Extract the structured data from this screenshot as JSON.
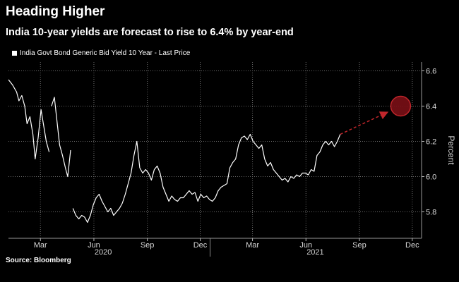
{
  "header": {
    "title": "Heading Higher",
    "subtitle": "India 10-year yields are forecast to rise to 6.4% by year-end"
  },
  "legend": {
    "label": "India Govt Bond Generic Bid Yield 10 Year - Last Price"
  },
  "footer": {
    "source": "Source: Bloomberg"
  },
  "colors": {
    "background": "#000000",
    "series": "#ffffff",
    "forecast": "#c0262b",
    "grid": "#6a6a6a"
  },
  "chart_data": {
    "type": "line",
    "title": "Heading Higher",
    "subtitle": "India 10-year yields are forecast to rise to 6.4% by year-end",
    "ylabel": "Percent",
    "y_axis_side": "right",
    "ylim": [
      5.65,
      6.65
    ],
    "yticks": [
      {
        "value": 5.8,
        "label": "5.8"
      },
      {
        "value": 6.0,
        "label": "6.0"
      },
      {
        "value": 6.2,
        "label": "6.2"
      },
      {
        "value": 6.4,
        "label": "6.4"
      },
      {
        "value": 6.6,
        "label": "6.6"
      }
    ],
    "xlim": [
      "2020-01-20",
      "2021-12-31"
    ],
    "xticks": [
      {
        "date": "2020-03-15",
        "label": "Mar"
      },
      {
        "date": "2020-06-15",
        "label": "Jun"
      },
      {
        "date": "2020-09-15",
        "label": "Sep"
      },
      {
        "date": "2020-12-15",
        "label": "Dec"
      },
      {
        "date": "2021-03-15",
        "label": "Mar"
      },
      {
        "date": "2021-06-15",
        "label": "Jun"
      },
      {
        "date": "2021-09-15",
        "label": "Sep"
      },
      {
        "date": "2021-12-15",
        "label": "Dec"
      }
    ],
    "year_labels": [
      {
        "date": "2020-07-01",
        "label": "2020"
      },
      {
        "date": "2021-07-01",
        "label": "2021"
      }
    ],
    "year_boundary": "2021-01-01",
    "grid": true,
    "legend_position": "top-left",
    "series": [
      {
        "name": "India Govt Bond Generic Bid Yield 10 Year - Last Price",
        "points": [
          [
            "2020-01-20",
            6.55
          ],
          [
            "2020-01-27",
            6.52
          ],
          [
            "2020-02-03",
            6.48
          ],
          [
            "2020-02-07",
            6.43
          ],
          [
            "2020-02-12",
            6.46
          ],
          [
            "2020-02-17",
            6.4
          ],
          [
            "2020-02-21",
            6.3
          ],
          [
            "2020-02-26",
            6.34
          ],
          [
            "2020-03-02",
            6.24
          ],
          [
            "2020-03-06",
            6.1
          ],
          [
            "2020-03-11",
            6.22
          ],
          [
            "2020-03-16",
            6.38
          ],
          [
            "2020-03-20",
            6.3
          ],
          [
            "2020-03-25",
            6.2
          ],
          [
            "2020-03-30",
            6.14
          ],
          [
            "2020-04-03",
            6.4
          ],
          [
            "2020-04-08",
            6.45
          ],
          [
            "2020-04-13",
            6.3
          ],
          [
            "2020-04-17",
            6.18
          ],
          [
            "2020-04-22",
            6.12
          ],
          [
            "2020-04-27",
            6.05
          ],
          [
            "2020-05-01",
            6.0
          ],
          [
            "2020-05-06",
            6.15
          ],
          [
            "2020-05-10",
            5.82
          ],
          [
            "2020-05-15",
            5.78
          ],
          [
            "2020-05-20",
            5.76
          ],
          [
            "2020-05-25",
            5.78
          ],
          [
            "2020-05-30",
            5.77
          ],
          [
            "2020-06-04",
            5.74
          ],
          [
            "2020-06-09",
            5.78
          ],
          [
            "2020-06-14",
            5.84
          ],
          [
            "2020-06-19",
            5.88
          ],
          [
            "2020-06-24",
            5.9
          ],
          [
            "2020-06-29",
            5.86
          ],
          [
            "2020-07-04",
            5.83
          ],
          [
            "2020-07-09",
            5.8
          ],
          [
            "2020-07-14",
            5.82
          ],
          [
            "2020-07-19",
            5.78
          ],
          [
            "2020-07-24",
            5.8
          ],
          [
            "2020-07-29",
            5.82
          ],
          [
            "2020-08-03",
            5.85
          ],
          [
            "2020-08-08",
            5.9
          ],
          [
            "2020-08-13",
            5.96
          ],
          [
            "2020-08-18",
            6.02
          ],
          [
            "2020-08-23",
            6.12
          ],
          [
            "2020-08-28",
            6.2
          ],
          [
            "2020-09-02",
            6.05
          ],
          [
            "2020-09-07",
            6.02
          ],
          [
            "2020-09-12",
            6.04
          ],
          [
            "2020-09-17",
            6.02
          ],
          [
            "2020-09-22",
            5.98
          ],
          [
            "2020-09-27",
            6.04
          ],
          [
            "2020-10-02",
            6.06
          ],
          [
            "2020-10-07",
            6.02
          ],
          [
            "2020-10-12",
            5.94
          ],
          [
            "2020-10-17",
            5.9
          ],
          [
            "2020-10-22",
            5.86
          ],
          [
            "2020-10-27",
            5.89
          ],
          [
            "2020-11-01",
            5.87
          ],
          [
            "2020-11-06",
            5.86
          ],
          [
            "2020-11-11",
            5.88
          ],
          [
            "2020-11-16",
            5.88
          ],
          [
            "2020-11-21",
            5.9
          ],
          [
            "2020-11-26",
            5.92
          ],
          [
            "2020-12-01",
            5.9
          ],
          [
            "2020-12-06",
            5.91
          ],
          [
            "2020-12-11",
            5.86
          ],
          [
            "2020-12-16",
            5.9
          ],
          [
            "2020-12-21",
            5.88
          ],
          [
            "2020-12-26",
            5.89
          ],
          [
            "2020-12-31",
            5.87
          ],
          [
            "2021-01-05",
            5.86
          ],
          [
            "2021-01-10",
            5.88
          ],
          [
            "2021-01-15",
            5.92
          ],
          [
            "2021-01-20",
            5.94
          ],
          [
            "2021-01-25",
            5.95
          ],
          [
            "2021-01-30",
            5.96
          ],
          [
            "2021-02-04",
            6.05
          ],
          [
            "2021-02-09",
            6.08
          ],
          [
            "2021-02-14",
            6.1
          ],
          [
            "2021-02-19",
            6.18
          ],
          [
            "2021-02-24",
            6.22
          ],
          [
            "2021-03-01",
            6.23
          ],
          [
            "2021-03-06",
            6.21
          ],
          [
            "2021-03-11",
            6.24
          ],
          [
            "2021-03-16",
            6.2
          ],
          [
            "2021-03-21",
            6.18
          ],
          [
            "2021-03-26",
            6.16
          ],
          [
            "2021-03-31",
            6.18
          ],
          [
            "2021-04-05",
            6.1
          ],
          [
            "2021-04-10",
            6.06
          ],
          [
            "2021-04-15",
            6.08
          ],
          [
            "2021-04-20",
            6.04
          ],
          [
            "2021-04-25",
            6.02
          ],
          [
            "2021-04-30",
            6.0
          ],
          [
            "2021-05-05",
            5.98
          ],
          [
            "2021-05-10",
            5.99
          ],
          [
            "2021-05-15",
            5.97
          ],
          [
            "2021-05-20",
            6.0
          ],
          [
            "2021-05-25",
            5.99
          ],
          [
            "2021-05-30",
            6.01
          ],
          [
            "2021-06-04",
            6.0
          ],
          [
            "2021-06-09",
            6.02
          ],
          [
            "2021-06-14",
            6.02
          ],
          [
            "2021-06-19",
            6.01
          ],
          [
            "2021-06-24",
            6.04
          ],
          [
            "2021-06-29",
            6.03
          ],
          [
            "2021-07-04",
            6.12
          ],
          [
            "2021-07-09",
            6.14
          ],
          [
            "2021-07-14",
            6.18
          ],
          [
            "2021-07-19",
            6.2
          ],
          [
            "2021-07-24",
            6.18
          ],
          [
            "2021-07-29",
            6.2
          ],
          [
            "2021-08-03",
            6.17
          ],
          [
            "2021-08-08",
            6.2
          ],
          [
            "2021-08-13",
            6.24
          ]
        ]
      }
    ],
    "forecast": {
      "from": [
        "2021-08-13",
        6.24
      ],
      "to": [
        "2021-11-25",
        6.4
      ],
      "target_label_value": 6.4
    }
  }
}
